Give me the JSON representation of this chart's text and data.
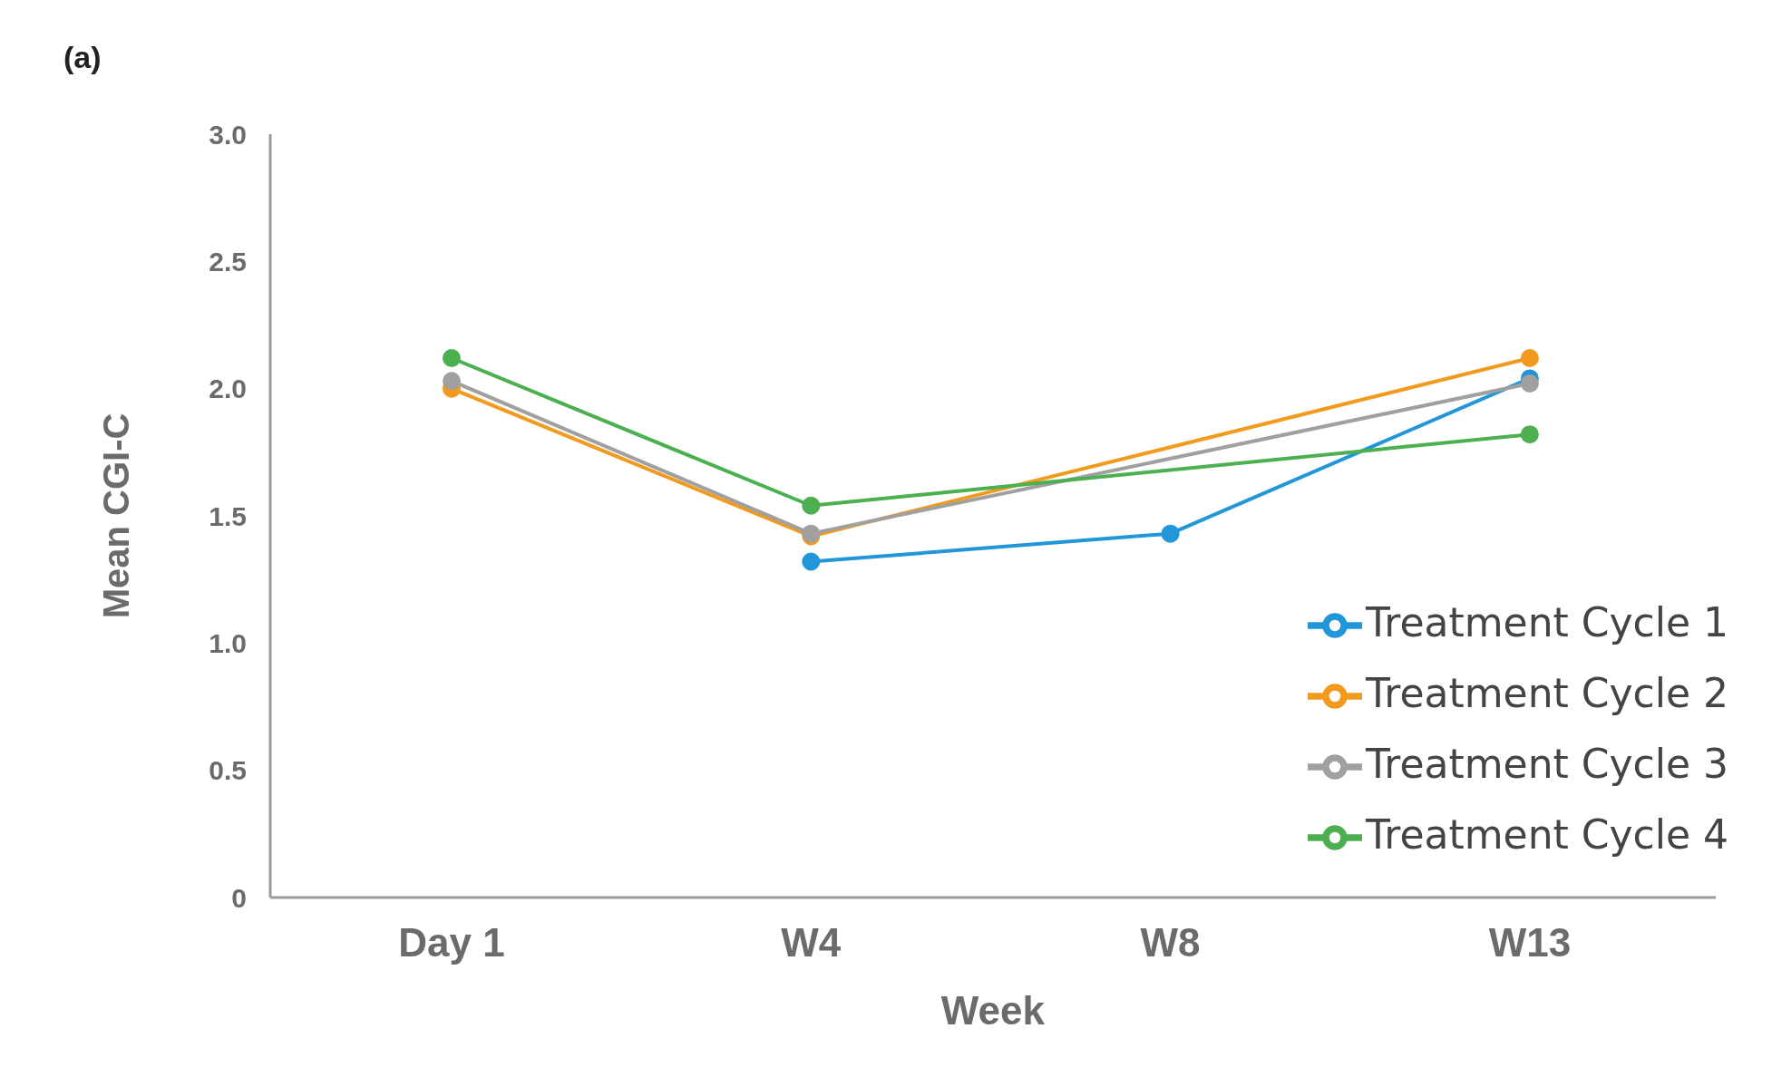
{
  "chart_data": {
    "type": "line",
    "title": "(a)",
    "xlabel": "Week",
    "ylabel": "Mean CGI-C",
    "categories": [
      "Day 1",
      "W4",
      "W8",
      "W13"
    ],
    "series": [
      {
        "name": "Treatment Cycle 1",
        "color": "#2196d8",
        "values": [
          null,
          1.32,
          1.43,
          2.04
        ]
      },
      {
        "name": "Treatment Cycle 2",
        "color": "#f29a1e",
        "values": [
          2.0,
          1.42,
          null,
          2.12
        ]
      },
      {
        "name": "Treatment Cycle 3",
        "color": "#a0a0a0",
        "values": [
          2.03,
          1.43,
          null,
          2.02
        ]
      },
      {
        "name": "Treatment Cycle 4",
        "color": "#4caf50",
        "values": [
          2.12,
          1.54,
          null,
          1.82
        ]
      }
    ],
    "ylim": [
      0,
      3
    ],
    "yticks": [
      0,
      {
        "value": 0.5,
        "label": "0.5"
      },
      {
        "value": 1,
        "label": "1.0"
      },
      {
        "value": 1.5,
        "label": "1.5"
      },
      {
        "value": 2,
        "label": "2.0"
      },
      {
        "value": 2.5,
        "label": "2.5"
      },
      {
        "value": 3,
        "label": "3.0"
      }
    ],
    "grid": false,
    "legend": "bottom right",
    "marker": "circle",
    "line_style": "solid"
  }
}
